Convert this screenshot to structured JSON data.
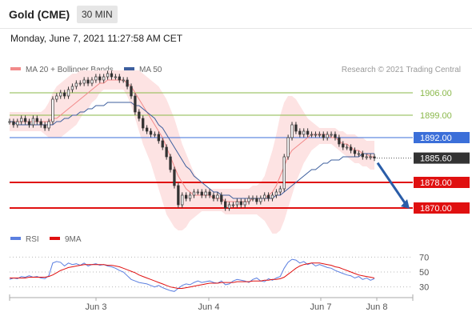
{
  "header": {
    "instrument": "Gold (CME)",
    "timeframe": "30 MIN",
    "datetime": "Monday, June 7, 2021 11:27:58 AM CET"
  },
  "legend": {
    "ma20_label": "MA 20 + Bollinger Bands",
    "ma50_label": "MA 50",
    "source": "Research © 2021 Trading Central"
  },
  "colors": {
    "ma20": "#f28a8a",
    "ma50": "#3d5f9e",
    "bands_fill": "#fde3e3",
    "green_level": "#8ab84a",
    "blue_level": "#3b6fd9",
    "red_level": "#e01010",
    "price_badge": "#333333",
    "arrow": "#2a5da8",
    "rsi": "#5b7fe0",
    "rsi_ma": "#e01010"
  },
  "chart_data": [
    {
      "type": "candlestick",
      "x_ticks": [
        "Jun 3",
        "Jun 4",
        "Jun 7",
        "Jun 8"
      ],
      "ylim": [
        1860,
        1915
      ],
      "levels": [
        {
          "value": 1906.0,
          "label": "1906.00",
          "kind": "resistance-green"
        },
        {
          "value": 1899.0,
          "label": "1899.00",
          "kind": "resistance-green"
        },
        {
          "value": 1892.0,
          "label": "1892.00",
          "kind": "pivot-blue"
        },
        {
          "value": 1885.6,
          "label": "1885.60",
          "kind": "last-price"
        },
        {
          "value": 1878.0,
          "label": "1878.00",
          "kind": "support-red"
        },
        {
          "value": 1870.0,
          "label": "1870.00",
          "kind": "support-red"
        }
      ],
      "close": [
        1897,
        1896,
        1897,
        1898,
        1897,
        1896,
        1898,
        1897,
        1896,
        1895,
        1897,
        1904,
        1905,
        1906,
        1905,
        1907,
        1908,
        1909,
        1909,
        1910,
        1909,
        1910,
        1911,
        1910,
        1911,
        1912,
        1911,
        1911,
        1910,
        1910,
        1908,
        1905,
        1900,
        1898,
        1895,
        1894,
        1893,
        1893,
        1891,
        1889,
        1886,
        1882,
        1877,
        1871,
        1874,
        1873,
        1874,
        1875,
        1875,
        1874,
        1875,
        1874,
        1873,
        1874,
        1872,
        1870,
        1871,
        1871,
        1872,
        1871,
        1872,
        1873,
        1873,
        1872,
        1873,
        1874,
        1873,
        1874,
        1875,
        1876,
        1886,
        1892,
        1896,
        1894,
        1893,
        1894,
        1893,
        1893,
        1893,
        1893,
        1892,
        1893,
        1893,
        1892,
        1890,
        1889,
        1889,
        1888,
        1887,
        1887,
        1886,
        1886,
        1886,
        1885.6
      ],
      "ma20": [
        1897,
        1897,
        1897,
        1897,
        1897,
        1897,
        1897,
        1897,
        1897,
        1897,
        1897,
        1898,
        1898,
        1899,
        1900,
        1901,
        1902,
        1903,
        1904,
        1905,
        1906,
        1907,
        1908,
        1909,
        1909,
        1910,
        1910,
        1910,
        1910,
        1910,
        1909,
        1908,
        1906,
        1904,
        1902,
        1900,
        1898,
        1896,
        1894,
        1892,
        1889,
        1886,
        1883,
        1880,
        1878,
        1876,
        1875,
        1874,
        1874,
        1874,
        1874,
        1874,
        1873,
        1873,
        1873,
        1872,
        1872,
        1872,
        1872,
        1872,
        1872,
        1872,
        1873,
        1873,
        1873,
        1873,
        1874,
        1875,
        1877,
        1880,
        1883,
        1886,
        1888,
        1889,
        1890,
        1891,
        1892,
        1893,
        1893,
        1893,
        1893,
        1893,
        1892,
        1892,
        1891,
        1890,
        1890,
        1889,
        1888,
        1888,
        1887,
        1887,
        1886,
        1886
      ],
      "bb_upper": [
        1900,
        1900,
        1900,
        1900,
        1900,
        1900,
        1900,
        1900,
        1900,
        1901,
        1903,
        1906,
        1908,
        1909,
        1910,
        1911,
        1912,
        1912,
        1913,
        1913,
        1913,
        1913,
        1913,
        1913,
        1913,
        1913,
        1913,
        1913,
        1913,
        1913,
        1913,
        1913,
        1913,
        1913,
        1912,
        1911,
        1910,
        1909,
        1908,
        1906,
        1904,
        1901,
        1898,
        1894,
        1890,
        1887,
        1884,
        1881,
        1879,
        1878,
        1877,
        1876,
        1876,
        1876,
        1876,
        1876,
        1876,
        1876,
        1876,
        1876,
        1876,
        1876,
        1877,
        1877,
        1878,
        1880,
        1884,
        1888,
        1893,
        1899,
        1903,
        1905,
        1905,
        1904,
        1902,
        1900,
        1898,
        1897,
        1896,
        1895,
        1895,
        1895,
        1895,
        1895,
        1894,
        1894,
        1893,
        1893,
        1893,
        1892,
        1892,
        1891,
        1891,
        1891
      ],
      "bb_lower": [
        1894,
        1894,
        1894,
        1894,
        1894,
        1894,
        1894,
        1894,
        1894,
        1893,
        1892,
        1892,
        1892,
        1892,
        1893,
        1894,
        1895,
        1896,
        1898,
        1900,
        1901,
        1903,
        1904,
        1906,
        1907,
        1907,
        1907,
        1907,
        1907,
        1907,
        1905,
        1902,
        1898,
        1894,
        1890,
        1887,
        1884,
        1880,
        1876,
        1872,
        1868,
        1866,
        1864,
        1863,
        1863,
        1864,
        1866,
        1867,
        1868,
        1869,
        1869,
        1869,
        1869,
        1869,
        1869,
        1868,
        1868,
        1868,
        1868,
        1868,
        1868,
        1868,
        1868,
        1868,
        1867,
        1866,
        1864,
        1862,
        1862,
        1863,
        1866,
        1870,
        1874,
        1878,
        1881,
        1884,
        1886,
        1888,
        1889,
        1890,
        1890,
        1890,
        1890,
        1889,
        1888,
        1887,
        1886,
        1885,
        1884,
        1884,
        1883,
        1883,
        1882,
        1882
      ],
      "ma50": [
        1897,
        1897,
        1896,
        1896,
        1896,
        1896,
        1896,
        1896,
        1896,
        1896,
        1896,
        1896,
        1897,
        1897,
        1898,
        1898,
        1899,
        1899,
        1900,
        1900,
        1901,
        1901,
        1902,
        1902,
        1902,
        1903,
        1903,
        1903,
        1903,
        1903,
        1903,
        1903,
        1902,
        1902,
        1901,
        1900,
        1899,
        1898,
        1896,
        1895,
        1893,
        1891,
        1889,
        1887,
        1885,
        1883,
        1882,
        1880,
        1879,
        1878,
        1877,
        1876,
        1875,
        1875,
        1874,
        1874,
        1874,
        1873,
        1873,
        1873,
        1873,
        1873,
        1873,
        1873,
        1873,
        1873,
        1873,
        1873,
        1874,
        1874,
        1875,
        1876,
        1877,
        1878,
        1879,
        1880,
        1881,
        1882,
        1882,
        1883,
        1884,
        1884,
        1885,
        1885,
        1885,
        1886,
        1886,
        1886,
        1886,
        1886,
        1887,
        1887,
        1887,
        1887
      ]
    },
    {
      "type": "line",
      "name": "RSI",
      "legend": [
        "RSI",
        "9MA"
      ],
      "y_ticks": [
        "70",
        "50",
        "30"
      ],
      "ylim": [
        20,
        80
      ],
      "rsi": [
        40,
        42,
        41,
        44,
        43,
        45,
        43,
        44,
        42,
        41,
        45,
        62,
        64,
        63,
        58,
        62,
        60,
        61,
        59,
        62,
        58,
        60,
        61,
        59,
        60,
        58,
        57,
        55,
        52,
        50,
        45,
        40,
        38,
        36,
        35,
        34,
        32,
        30,
        32,
        29,
        27,
        25,
        24,
        28,
        32,
        34,
        33,
        36,
        38,
        36,
        37,
        38,
        36,
        35,
        38,
        33,
        34,
        38,
        40,
        39,
        38,
        36,
        40,
        42,
        38,
        37,
        41,
        39,
        42,
        44,
        55,
        63,
        67,
        66,
        62,
        64,
        60,
        62,
        58,
        60,
        58,
        56,
        55,
        52,
        50,
        48,
        46,
        45,
        42,
        44,
        40,
        42,
        39,
        41
      ],
      "rsi_ma": [
        42,
        42,
        42,
        42,
        42,
        43,
        43,
        43,
        43,
        43,
        44,
        46,
        49,
        52,
        54,
        56,
        57,
        58,
        59,
        60,
        60,
        60,
        60,
        60,
        60,
        59,
        59,
        58,
        57,
        55,
        53,
        51,
        49,
        46,
        44,
        42,
        40,
        38,
        36,
        34,
        32,
        30,
        29,
        28,
        28,
        29,
        30,
        31,
        32,
        33,
        34,
        35,
        35,
        35,
        36,
        36,
        36,
        36,
        37,
        37,
        37,
        37,
        38,
        38,
        38,
        39,
        39,
        40,
        40,
        41,
        43,
        47,
        51,
        55,
        58,
        60,
        61,
        62,
        62,
        62,
        61,
        60,
        59,
        57,
        56,
        54,
        52,
        50,
        48,
        46,
        45,
        44,
        43,
        42
      ]
    }
  ]
}
